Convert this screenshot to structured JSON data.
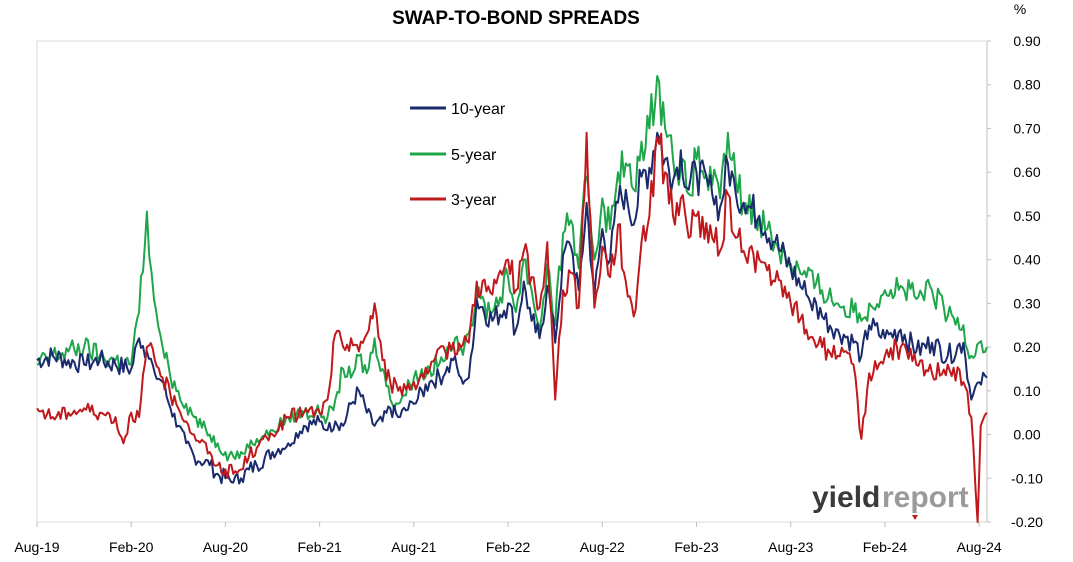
{
  "chart_data": {
    "type": "line",
    "title": "SWAP-TO-BOND SPREADS",
    "y_unit": "%",
    "ylim": [
      -0.2,
      0.9
    ],
    "y_ticks": [
      "0.90",
      "0.80",
      "0.70",
      "0.60",
      "0.50",
      "0.40",
      "0.30",
      "0.20",
      "0.10",
      "0.00",
      "-0.10",
      "-0.20"
    ],
    "x_ticks": [
      "Aug-19",
      "Feb-20",
      "Aug-20",
      "Feb-21",
      "Aug-21",
      "Feb-22",
      "Aug-22",
      "Feb-23",
      "Aug-23",
      "Feb-24",
      "Aug-24"
    ],
    "x_range_months": [
      0,
      60.5
    ],
    "y_axis_position": "right",
    "legend_position": "upper-left inside plot",
    "series": [
      {
        "name": "10-year",
        "color": "#1a2a6c",
        "points": [
          [
            0,
            0.17
          ],
          [
            1,
            0.18
          ],
          [
            2,
            0.17
          ],
          [
            3,
            0.16
          ],
          [
            4,
            0.17
          ],
          [
            5,
            0.16
          ],
          [
            6,
            0.15
          ],
          [
            6.5,
            0.22
          ],
          [
            7,
            0.19
          ],
          [
            7.5,
            0.14
          ],
          [
            8,
            0.12
          ],
          [
            8.5,
            0.06
          ],
          [
            9,
            0.02
          ],
          [
            9.5,
            -0.02
          ],
          [
            10,
            -0.05
          ],
          [
            11,
            -0.07
          ],
          [
            11.5,
            -0.09
          ],
          [
            12,
            -0.1
          ],
          [
            12.5,
            -0.11
          ],
          [
            13,
            -0.1
          ],
          [
            13.5,
            -0.08
          ],
          [
            14,
            -0.07
          ],
          [
            15,
            -0.04
          ],
          [
            16,
            -0.02
          ],
          [
            17,
            0.02
          ],
          [
            18,
            0.03
          ],
          [
            18.5,
            0.01
          ],
          [
            19,
            0.03
          ],
          [
            19.5,
            0.02
          ],
          [
            20,
            0.07
          ],
          [
            20.5,
            0.1
          ],
          [
            21,
            0.05
          ],
          [
            21.5,
            0.02
          ],
          [
            22,
            0.03
          ],
          [
            22.5,
            0.06
          ],
          [
            23,
            0.04
          ],
          [
            24,
            0.07
          ],
          [
            25,
            0.12
          ],
          [
            26,
            0.14
          ],
          [
            26.5,
            0.17
          ],
          [
            27,
            0.13
          ],
          [
            27.5,
            0.13
          ],
          [
            28,
            0.31
          ],
          [
            29,
            0.26
          ],
          [
            30,
            0.3
          ],
          [
            30.5,
            0.24
          ],
          [
            31,
            0.35
          ],
          [
            31.5,
            0.26
          ],
          [
            32,
            0.22
          ],
          [
            32.5,
            0.34
          ],
          [
            33,
            0.21
          ],
          [
            33.5,
            0.41
          ],
          [
            34,
            0.43
          ],
          [
            34.5,
            0.33
          ],
          [
            35,
            0.53
          ],
          [
            35.5,
            0.32
          ],
          [
            36,
            0.47
          ],
          [
            36.5,
            0.4
          ],
          [
            37,
            0.53
          ],
          [
            37.5,
            0.56
          ],
          [
            38,
            0.48
          ],
          [
            38.5,
            0.59
          ],
          [
            39,
            0.61
          ],
          [
            39.5,
            0.69
          ],
          [
            40,
            0.63
          ],
          [
            40.5,
            0.58
          ],
          [
            41,
            0.65
          ],
          [
            41.5,
            0.56
          ],
          [
            42,
            0.6
          ],
          [
            43,
            0.55
          ],
          [
            43.5,
            0.52
          ],
          [
            44,
            0.62
          ],
          [
            44.5,
            0.55
          ],
          [
            45,
            0.53
          ],
          [
            46,
            0.5
          ],
          [
            47,
            0.44
          ],
          [
            48,
            0.38
          ],
          [
            49,
            0.32
          ],
          [
            50,
            0.27
          ],
          [
            51,
            0.24
          ],
          [
            52,
            0.21
          ],
          [
            52.5,
            0.18
          ],
          [
            53,
            0.25
          ],
          [
            54,
            0.22
          ],
          [
            55,
            0.24
          ],
          [
            56,
            0.19
          ],
          [
            57,
            0.21
          ],
          [
            58,
            0.18
          ],
          [
            59,
            0.21
          ],
          [
            59.5,
            0.08
          ],
          [
            60,
            0.12
          ],
          [
            60.5,
            0.13
          ]
        ]
      },
      {
        "name": "5-year",
        "color": "#1fa64a",
        "points": [
          [
            0,
            0.16
          ],
          [
            1,
            0.18
          ],
          [
            2,
            0.19
          ],
          [
            3,
            0.2
          ],
          [
            4,
            0.18
          ],
          [
            5,
            0.17
          ],
          [
            6,
            0.16
          ],
          [
            6.5,
            0.28
          ],
          [
            7,
            0.51
          ],
          [
            7.3,
            0.37
          ],
          [
            7.6,
            0.28
          ],
          [
            8,
            0.2
          ],
          [
            8.5,
            0.13
          ],
          [
            9,
            0.1
          ],
          [
            9.5,
            0.07
          ],
          [
            10,
            0.04
          ],
          [
            11,
            0.0
          ],
          [
            11.5,
            -0.02
          ],
          [
            12,
            -0.04
          ],
          [
            12.5,
            -0.05
          ],
          [
            13,
            -0.04
          ],
          [
            13.5,
            -0.03
          ],
          [
            14,
            -0.01
          ],
          [
            15,
            0.01
          ],
          [
            16,
            0.04
          ],
          [
            17,
            0.05
          ],
          [
            18,
            0.05
          ],
          [
            18.5,
            0.04
          ],
          [
            19,
            0.08
          ],
          [
            19.5,
            0.15
          ],
          [
            20,
            0.13
          ],
          [
            20.5,
            0.18
          ],
          [
            21,
            0.14
          ],
          [
            21.5,
            0.22
          ],
          [
            22,
            0.15
          ],
          [
            22.5,
            0.08
          ],
          [
            23,
            0.07
          ],
          [
            24,
            0.13
          ],
          [
            25,
            0.15
          ],
          [
            26,
            0.17
          ],
          [
            26.5,
            0.2
          ],
          [
            27,
            0.2
          ],
          [
            27.5,
            0.23
          ],
          [
            28,
            0.31
          ],
          [
            29,
            0.28
          ],
          [
            30,
            0.36
          ],
          [
            30.5,
            0.28
          ],
          [
            31,
            0.4
          ],
          [
            31.5,
            0.33
          ],
          [
            32,
            0.24
          ],
          [
            32.5,
            0.39
          ],
          [
            33,
            0.25
          ],
          [
            33.5,
            0.46
          ],
          [
            34,
            0.49
          ],
          [
            34.5,
            0.38
          ],
          [
            35,
            0.59
          ],
          [
            35.5,
            0.4
          ],
          [
            36,
            0.54
          ],
          [
            36.5,
            0.47
          ],
          [
            37,
            0.6
          ],
          [
            37.5,
            0.62
          ],
          [
            38,
            0.56
          ],
          [
            38.5,
            0.67
          ],
          [
            39,
            0.7
          ],
          [
            39.5,
            0.82
          ],
          [
            40,
            0.7
          ],
          [
            40.5,
            0.63
          ],
          [
            41,
            0.61
          ],
          [
            41.5,
            0.55
          ],
          [
            42,
            0.63
          ],
          [
            43,
            0.57
          ],
          [
            43.5,
            0.54
          ],
          [
            44,
            0.69
          ],
          [
            44.5,
            0.58
          ],
          [
            45,
            0.53
          ],
          [
            46,
            0.5
          ],
          [
            47,
            0.44
          ],
          [
            48,
            0.39
          ],
          [
            49,
            0.36
          ],
          [
            50,
            0.33
          ],
          [
            51,
            0.3
          ],
          [
            52,
            0.28
          ],
          [
            52.5,
            0.26
          ],
          [
            53,
            0.3
          ],
          [
            54,
            0.33
          ],
          [
            55,
            0.34
          ],
          [
            56,
            0.31
          ],
          [
            57,
            0.33
          ],
          [
            58,
            0.27
          ],
          [
            59,
            0.25
          ],
          [
            59.5,
            0.18
          ],
          [
            60,
            0.21
          ],
          [
            60.5,
            0.2
          ]
        ]
      },
      {
        "name": "3-year",
        "color": "#c0191c",
        "points": [
          [
            0,
            0.06
          ],
          [
            1,
            0.04
          ],
          [
            2,
            0.05
          ],
          [
            3,
            0.06
          ],
          [
            4,
            0.05
          ],
          [
            5,
            0.04
          ],
          [
            5.5,
            -0.02
          ],
          [
            6,
            0.05
          ],
          [
            6.5,
            0.04
          ],
          [
            7,
            0.2
          ],
          [
            7.5,
            0.17
          ],
          [
            8,
            0.13
          ],
          [
            8.5,
            0.09
          ],
          [
            9,
            0.06
          ],
          [
            9.5,
            0.03
          ],
          [
            10,
            0.0
          ],
          [
            11,
            -0.04
          ],
          [
            11.5,
            -0.07
          ],
          [
            12,
            -0.08
          ],
          [
            12.5,
            -0.09
          ],
          [
            13,
            -0.08
          ],
          [
            13.5,
            -0.05
          ],
          [
            14,
            -0.03
          ],
          [
            15,
            0.0
          ],
          [
            16,
            0.04
          ],
          [
            17,
            0.05
          ],
          [
            18,
            0.05
          ],
          [
            18.5,
            0.08
          ],
          [
            19,
            0.23
          ],
          [
            19.5,
            0.2
          ],
          [
            20,
            0.22
          ],
          [
            20.5,
            0.19
          ],
          [
            21,
            0.23
          ],
          [
            21.5,
            0.3
          ],
          [
            22,
            0.17
          ],
          [
            22.5,
            0.12
          ],
          [
            23,
            0.1
          ],
          [
            24,
            0.12
          ],
          [
            25,
            0.15
          ],
          [
            26,
            0.19
          ],
          [
            26.5,
            0.21
          ],
          [
            27,
            0.2
          ],
          [
            27.5,
            0.21
          ],
          [
            28,
            0.35
          ],
          [
            29,
            0.32
          ],
          [
            30,
            0.4
          ],
          [
            30.5,
            0.33
          ],
          [
            31,
            0.42
          ],
          [
            31.5,
            0.36
          ],
          [
            32,
            0.29
          ],
          [
            32.5,
            0.44
          ],
          [
            33,
            0.08
          ],
          [
            33.5,
            0.33
          ],
          [
            34,
            0.37
          ],
          [
            34.5,
            0.29
          ],
          [
            35,
            0.69
          ],
          [
            35.5,
            0.29
          ],
          [
            36,
            0.43
          ],
          [
            36.5,
            0.36
          ],
          [
            37,
            0.48
          ],
          [
            37.5,
            0.35
          ],
          [
            38,
            0.27
          ],
          [
            38.5,
            0.44
          ],
          [
            39,
            0.5
          ],
          [
            39.5,
            0.68
          ],
          [
            40,
            0.6
          ],
          [
            40.5,
            0.5
          ],
          [
            41,
            0.54
          ],
          [
            41.5,
            0.45
          ],
          [
            42,
            0.5
          ],
          [
            43,
            0.45
          ],
          [
            43.5,
            0.42
          ],
          [
            44,
            0.55
          ],
          [
            44.5,
            0.45
          ],
          [
            45,
            0.42
          ],
          [
            46,
            0.4
          ],
          [
            47,
            0.35
          ],
          [
            48,
            0.3
          ],
          [
            49,
            0.24
          ],
          [
            50,
            0.2
          ],
          [
            51,
            0.18
          ],
          [
            52,
            0.16
          ],
          [
            52.5,
            -0.01
          ],
          [
            53,
            0.14
          ],
          [
            54,
            0.18
          ],
          [
            55,
            0.2
          ],
          [
            56,
            0.16
          ],
          [
            57,
            0.14
          ],
          [
            58,
            0.16
          ],
          [
            59,
            0.12
          ],
          [
            59.5,
            0.04
          ],
          [
            59.9,
            -0.2
          ],
          [
            60.1,
            0.02
          ],
          [
            60.5,
            0.05
          ]
        ]
      }
    ]
  },
  "logo": {
    "part1": "yield",
    "part2": "report"
  }
}
